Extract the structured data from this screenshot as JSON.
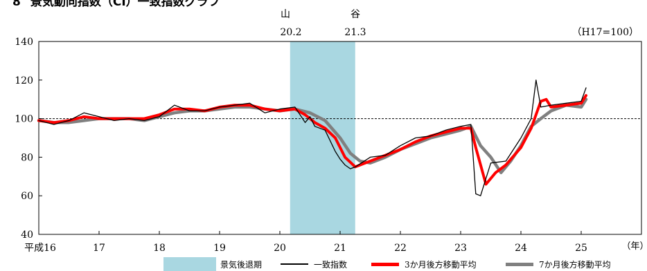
{
  "header": {
    "number": "8",
    "title": "景気動向指数（CI）一致指数グラフ"
  },
  "peak": {
    "label": "山",
    "value": "20.2"
  },
  "trough": {
    "label": "谷",
    "value": "21.3"
  },
  "base_note": "（H17=100）",
  "x_unit_label": "（年）",
  "legend": {
    "recession": "景気後退期",
    "ci": "一致指数",
    "ma3": "3か月後方移動平均",
    "ma7": "7か月後方移動平均"
  },
  "colors": {
    "ci": "#000000",
    "ma3": "#ff0000",
    "ma7": "#808080",
    "recession": "#a9d7e1",
    "reference_line": "#000000"
  },
  "chart_data": {
    "type": "line",
    "xlabel": "",
    "ylabel": "",
    "ylim": [
      40,
      140
    ],
    "yticks": [
      40,
      60,
      80,
      100,
      120,
      140
    ],
    "xlim": [
      16,
      26
    ],
    "xticks": [
      16,
      17,
      18,
      19,
      20,
      21,
      22,
      23,
      24,
      25
    ],
    "xtick_labels": [
      "平成16",
      "17",
      "18",
      "19",
      "20",
      "21",
      "22",
      "23",
      "24",
      "25"
    ],
    "reference_line": 100,
    "recession_band": [
      20.17,
      21.25
    ],
    "series": [
      {
        "name": "一致指数",
        "x": [
          16.0,
          16.25,
          16.5,
          16.75,
          17.0,
          17.25,
          17.5,
          17.75,
          18.0,
          18.25,
          18.5,
          18.75,
          19.0,
          19.25,
          19.5,
          19.75,
          20.0,
          20.25,
          20.42,
          20.5,
          20.58,
          20.75,
          20.92,
          21.0,
          21.08,
          21.17,
          21.25,
          21.5,
          21.75,
          22.0,
          22.25,
          22.5,
          22.75,
          23.0,
          23.17,
          23.25,
          23.33,
          23.5,
          23.75,
          24.0,
          24.17,
          24.25,
          24.33,
          24.5,
          24.75,
          25.0,
          25.08
        ],
        "values": [
          99,
          97,
          99,
          103,
          101,
          99,
          100,
          99,
          101,
          107,
          104,
          104,
          106,
          107,
          108,
          103,
          105,
          106,
          98,
          101,
          96,
          94,
          83,
          79,
          76,
          74,
          75,
          80,
          81,
          86,
          90,
          91,
          94,
          96,
          97,
          61,
          60,
          77,
          78,
          90,
          100,
          120,
          106,
          107,
          108,
          109,
          116
        ]
      },
      {
        "name": "3か月後方移動平均",
        "x": [
          16.0,
          16.25,
          16.5,
          16.75,
          17.0,
          17.25,
          17.5,
          17.75,
          18.0,
          18.25,
          18.5,
          18.75,
          19.0,
          19.25,
          19.5,
          19.75,
          20.0,
          20.25,
          20.42,
          20.58,
          20.75,
          20.92,
          21.08,
          21.25,
          21.5,
          21.75,
          22.0,
          22.25,
          22.5,
          22.75,
          23.0,
          23.17,
          23.25,
          23.42,
          23.58,
          23.75,
          24.0,
          24.17,
          24.33,
          24.42,
          24.5,
          24.75,
          25.0,
          25.08
        ],
        "values": [
          99,
          98,
          99,
          101,
          100,
          100,
          100,
          100,
          102,
          105,
          105,
          104,
          106,
          107,
          107,
          105,
          104,
          105,
          102,
          98,
          95,
          90,
          80,
          75,
          78,
          81,
          84,
          88,
          91,
          93,
          95,
          95,
          85,
          66,
          72,
          76,
          85,
          95,
          109,
          110,
          106,
          107,
          108,
          112
        ]
      },
      {
        "name": "7か月後方移動平均",
        "x": [
          16.0,
          16.25,
          16.5,
          16.75,
          17.0,
          17.25,
          17.5,
          17.75,
          18.0,
          18.25,
          18.5,
          18.75,
          19.0,
          19.25,
          19.5,
          19.75,
          20.0,
          20.25,
          20.5,
          20.75,
          21.0,
          21.17,
          21.33,
          21.5,
          21.75,
          22.0,
          22.25,
          22.5,
          22.75,
          23.0,
          23.17,
          23.33,
          23.5,
          23.67,
          23.83,
          24.0,
          24.17,
          24.33,
          24.5,
          24.75,
          25.0,
          25.08
        ],
        "values": [
          99,
          98,
          98,
          99,
          100,
          100,
          100,
          99,
          101,
          103,
          104,
          104,
          105,
          106,
          106,
          105,
          104,
          105,
          103,
          99,
          90,
          82,
          78,
          77,
          80,
          84,
          87,
          90,
          92,
          94,
          96,
          86,
          80,
          72,
          78,
          86,
          96,
          100,
          104,
          107,
          106,
          110
        ]
      }
    ]
  }
}
